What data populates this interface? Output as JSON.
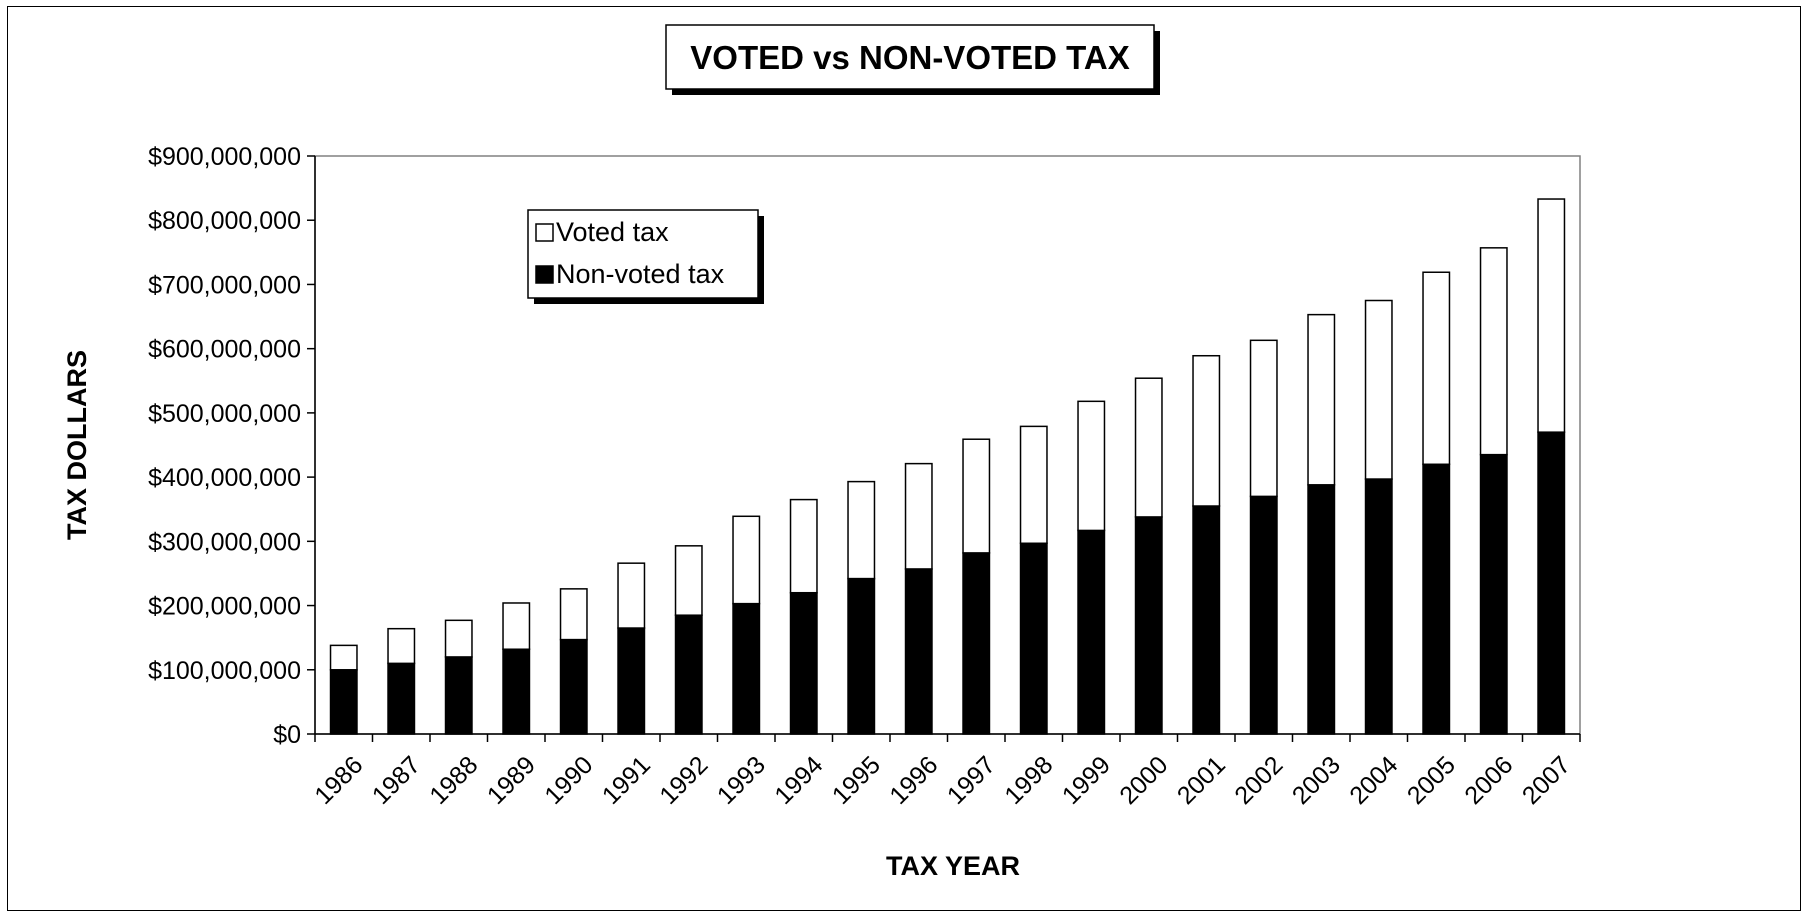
{
  "chart_data": {
    "type": "bar",
    "stacked": true,
    "title": "VOTED vs NON-VOTED TAX",
    "xlabel": "TAX YEAR",
    "ylabel": "TAX DOLLARS",
    "ylim": [
      0,
      900000000
    ],
    "yticks": [
      0,
      100000000,
      200000000,
      300000000,
      400000000,
      500000000,
      600000000,
      700000000,
      800000000,
      900000000
    ],
    "ytick_labels": [
      "$0",
      "$100,000,000",
      "$200,000,000",
      "$300,000,000",
      "$400,000,000",
      "$500,000,000",
      "$600,000,000",
      "$700,000,000",
      "$800,000,000",
      "$900,000,000"
    ],
    "grid": false,
    "legend_position": "top-left",
    "categories": [
      "1986",
      "1987",
      "1988",
      "1989",
      "1990",
      "1991",
      "1992",
      "1993",
      "1994",
      "1995",
      "1996",
      "1997",
      "1998",
      "1999",
      "2000",
      "2001",
      "2002",
      "2003",
      "2004",
      "2005",
      "2006",
      "2007"
    ],
    "series": [
      {
        "name": "Non-voted tax",
        "color": "#000000",
        "values": [
          100000000,
          110000000,
          120000000,
          132000000,
          147000000,
          165000000,
          185000000,
          203000000,
          220000000,
          242000000,
          257000000,
          282000000,
          297000000,
          317000000,
          338000000,
          355000000,
          370000000,
          388000000,
          397000000,
          420000000,
          435000000,
          470000000
        ]
      },
      {
        "name": "Voted tax",
        "color": "#ffffff",
        "values": [
          38000000,
          54000000,
          57000000,
          72000000,
          79000000,
          101000000,
          108000000,
          136000000,
          145000000,
          151000000,
          164000000,
          177000000,
          182000000,
          201000000,
          216000000,
          234000000,
          243000000,
          265000000,
          278000000,
          299000000,
          322000000,
          363000000
        ]
      }
    ]
  }
}
